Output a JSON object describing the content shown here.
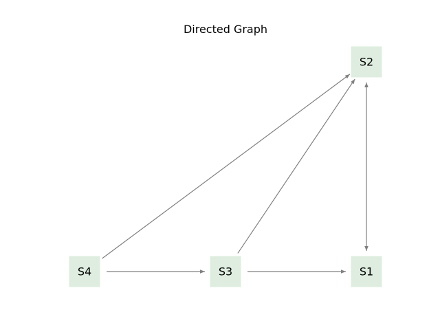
{
  "title": "Directed Graph",
  "colors": {
    "node_fill": "#deeddf",
    "edge": "#808080",
    "text": "#000000"
  },
  "nodes": [
    {
      "id": "S1",
      "label": "S1"
    },
    {
      "id": "S2",
      "label": "S2"
    },
    {
      "id": "S3",
      "label": "S3"
    },
    {
      "id": "S4",
      "label": "S4"
    }
  ],
  "edges": [
    {
      "from": "S4",
      "to": "S2"
    },
    {
      "from": "S4",
      "to": "S3"
    },
    {
      "from": "S3",
      "to": "S2"
    },
    {
      "from": "S3",
      "to": "S1"
    },
    {
      "from": "S2",
      "to": "S1"
    },
    {
      "from": "S1",
      "to": "S2"
    }
  ]
}
